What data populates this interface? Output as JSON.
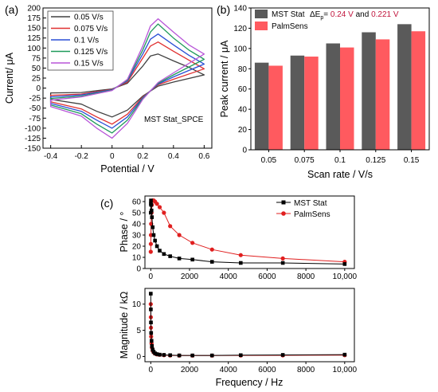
{
  "panel_labels": [
    "(a)",
    "(b)",
    "(c)"
  ],
  "chart_data": [
    {
      "type": "line",
      "panel": "(a)",
      "xlabel": "Potential / V",
      "ylabel": "Current/ μA",
      "xlim": [
        -0.45,
        0.65
      ],
      "ylim": [
        -150,
        200
      ],
      "xticks": [
        -0.4,
        -0.2,
        0.0,
        0.2,
        0.4,
        0.6
      ],
      "yticks": [
        -150,
        -125,
        -100,
        -75,
        -50,
        -25,
        0,
        25,
        50,
        75,
        100,
        125,
        150,
        175,
        200
      ],
      "annotation": "MST Stat_SPCE",
      "legend_position": "top-left",
      "grid": false,
      "series": [
        {
          "name": "0.05 V/s",
          "color": "#404040",
          "upper": {
            "x": [
              -0.4,
              -0.2,
              0.0,
              0.1,
              0.2,
              0.25,
              0.3,
              0.4,
              0.5,
              0.6
            ],
            "y": [
              -12,
              -11,
              -2,
              12,
              55,
              80,
              85,
              68,
              52,
              33
            ]
          },
          "lower": {
            "x": [
              0.6,
              0.4,
              0.3,
              0.2,
              0.1,
              0.0,
              -0.1,
              -0.2,
              -0.4
            ],
            "y": [
              33,
              15,
              5,
              -20,
              -55,
              -72,
              -58,
              -40,
              -28
            ]
          }
        },
        {
          "name": "0.075 V/s",
          "color": "#e03030",
          "upper": {
            "x": [
              -0.4,
              -0.2,
              0.0,
              0.1,
              0.2,
              0.25,
              0.3,
              0.4,
              0.5,
              0.6
            ],
            "y": [
              -18,
              -15,
              -3,
              15,
              75,
              105,
              115,
              92,
              70,
              48
            ]
          },
          "lower": {
            "x": [
              0.6,
              0.4,
              0.3,
              0.2,
              0.1,
              0.0,
              -0.1,
              -0.2,
              -0.4
            ],
            "y": [
              48,
              22,
              8,
              -22,
              -65,
              -90,
              -72,
              -52,
              -34
            ]
          }
        },
        {
          "name": "0.1 V/s",
          "color": "#2a4fd6",
          "upper": {
            "x": [
              -0.4,
              -0.2,
              0.0,
              0.1,
              0.2,
              0.25,
              0.3,
              0.4,
              0.5,
              0.6
            ],
            "y": [
              -22,
              -17,
              -4,
              18,
              85,
              122,
              135,
              108,
              82,
              60
            ]
          },
          "lower": {
            "x": [
              0.6,
              0.4,
              0.3,
              0.2,
              0.1,
              0.0,
              -0.1,
              -0.2,
              -0.4
            ],
            "y": [
              60,
              28,
              10,
              -24,
              -72,
              -100,
              -80,
              -58,
              -38
            ]
          }
        },
        {
          "name": "0.125 V/s",
          "color": "#1f9a5a",
          "upper": {
            "x": [
              -0.4,
              -0.2,
              0.0,
              0.1,
              0.2,
              0.25,
              0.3,
              0.4,
              0.5,
              0.6
            ],
            "y": [
              -26,
              -20,
              -5,
              20,
              95,
              140,
              160,
              125,
              95,
              72
            ]
          },
          "lower": {
            "x": [
              0.6,
              0.4,
              0.3,
              0.2,
              0.1,
              0.0,
              -0.1,
              -0.2,
              -0.4
            ],
            "y": [
              72,
              33,
              12,
              -26,
              -80,
              -112,
              -90,
              -64,
              -42
            ]
          }
        },
        {
          "name": "0.15 V/s",
          "color": "#b855d8",
          "upper": {
            "x": [
              -0.4,
              -0.2,
              0.0,
              0.1,
              0.2,
              0.25,
              0.3,
              0.4,
              0.5,
              0.6
            ],
            "y": [
              -30,
              -22,
              -6,
              22,
              105,
              155,
              173,
              140,
              108,
              85
            ]
          },
          "lower": {
            "x": [
              0.6,
              0.4,
              0.3,
              0.2,
              0.1,
              0.0,
              -0.1,
              -0.2,
              -0.4
            ],
            "y": [
              85,
              38,
              14,
              -28,
              -88,
              -125,
              -100,
              -70,
              -46
            ]
          }
        }
      ]
    },
    {
      "type": "bar",
      "panel": "(b)",
      "xlabel": "Scan rate / V/s",
      "ylabel": "Peak current / μA",
      "ylim": [
        0,
        140
      ],
      "yticks": [
        0,
        20,
        40,
        60,
        80,
        100,
        120,
        140
      ],
      "categories": [
        "0.05",
        "0.075",
        "0.1",
        "0.125",
        "0.15"
      ],
      "legend_position": "top-left",
      "annotation": {
        "prefix": "ΔE",
        "subscript": "p",
        "eq": "= ",
        "v1": "0.24 V",
        "mid": " and ",
        "v2": "0.221 V"
      },
      "annotation_color": "#c0143c",
      "series": [
        {
          "name": "MST Stat",
          "color": "#5a5a5a",
          "values": [
            86,
            93,
            105,
            116,
            124
          ]
        },
        {
          "name": "PalmSens",
          "color": "#ff5a5f",
          "values": [
            83,
            92,
            101,
            109,
            117
          ]
        }
      ]
    },
    {
      "type": "line",
      "panel": "(c) top",
      "xlabel": "",
      "ylabel": "Phase / °",
      "xlim": [
        -300,
        10500
      ],
      "ylim": [
        0,
        65
      ],
      "xticks": [
        0,
        2000,
        4000,
        6000,
        8000,
        10000
      ],
      "xticklabels": [
        "0",
        "2000",
        "4000",
        "6000",
        "8000",
        "10,000"
      ],
      "yticks": [
        0,
        10,
        20,
        30,
        40,
        50,
        60
      ],
      "legend_position": "top-right",
      "series": [
        {
          "name": "MST Stat",
          "color": "#000000",
          "marker": "square",
          "x": [
            1,
            5,
            10,
            20,
            40,
            60,
            100,
            150,
            220,
            320,
            460,
            680,
            1000,
            1470,
            2150,
            3160,
            4640,
            6810,
            10000
          ],
          "y": [
            50,
            58,
            61,
            57,
            52,
            46,
            37,
            30,
            25,
            20,
            16,
            13,
            11,
            9,
            8,
            6,
            5,
            5,
            4
          ]
        },
        {
          "name": "PalmSens",
          "color": "#e01f1f",
          "marker": "circle",
          "x": [
            1,
            5,
            10,
            20,
            40,
            60,
            100,
            150,
            220,
            320,
            460,
            680,
            1000,
            1470,
            2150,
            3160,
            4640,
            6810,
            10000
          ],
          "y": [
            15,
            22,
            30,
            40,
            50,
            57,
            61,
            61,
            60,
            58,
            55,
            50,
            38,
            30,
            23,
            17,
            12,
            9,
            6
          ]
        }
      ]
    },
    {
      "type": "line",
      "panel": "(c) bottom",
      "xlabel": "Frequency  / Hz",
      "ylabel": "Magnitude / kΩ",
      "xlim": [
        -300,
        10500
      ],
      "ylim": [
        -1,
        13
      ],
      "xticks": [
        0,
        2000,
        4000,
        6000,
        8000,
        10000
      ],
      "xticklabels": [
        "0",
        "2000",
        "4000",
        "6000",
        "8000",
        "10,000"
      ],
      "yticks": [
        0,
        5,
        10
      ],
      "series": [
        {
          "name": "MST Stat",
          "color": "#000000",
          "marker": "square",
          "x": [
            1,
            5,
            10,
            20,
            40,
            60,
            100,
            150,
            220,
            320,
            460,
            680,
            1000,
            1470,
            2150,
            3160,
            4640,
            6810,
            10000
          ],
          "y": [
            12,
            9,
            6.5,
            4.5,
            3,
            2,
            1.3,
            0.9,
            0.6,
            0.45,
            0.35,
            0.3,
            0.25,
            0.2,
            0.2,
            0.2,
            0.25,
            0.3,
            0.35
          ]
        },
        {
          "name": "PalmSens",
          "color": "#e01f1f",
          "marker": "circle",
          "x": [
            1,
            5,
            10,
            20,
            40,
            60,
            100,
            150,
            220,
            320,
            460,
            680,
            1000,
            1470,
            2150,
            3160,
            4640,
            6810,
            10000
          ],
          "y": [
            10,
            7.5,
            5.5,
            3.8,
            2.5,
            1.7,
            1.1,
            0.8,
            0.55,
            0.4,
            0.32,
            0.25,
            0.2,
            0.18,
            0.17,
            0.17,
            0.2,
            0.22,
            0.25
          ]
        }
      ]
    }
  ]
}
